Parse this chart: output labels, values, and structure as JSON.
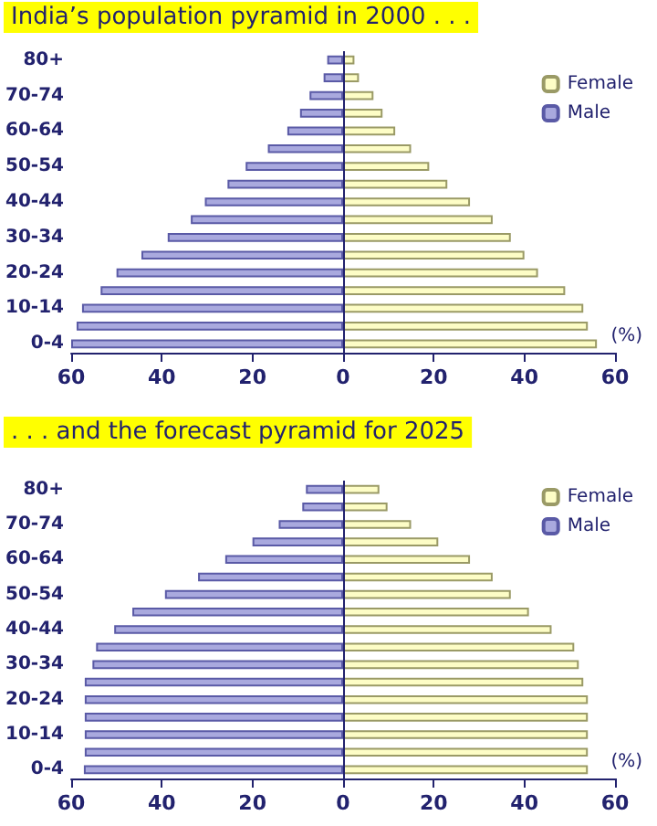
{
  "chart_data": [
    {
      "type": "bar",
      "orientation": "horizontal",
      "stacked": true,
      "title": "India’s population pyramid in 2000 . . .",
      "annotations": [
        "(%)"
      ],
      "categories": [
        "80+",
        null,
        "70-74",
        null,
        "60-64",
        null,
        "50-54",
        null,
        "40-44",
        null,
        "30-34",
        null,
        "20-24",
        null,
        "10-14",
        null,
        "0-4"
      ],
      "series": [
        {
          "name": "Female",
          "color": "#fdfdc6",
          "values": [
            2.5,
            3.5,
            6.7,
            8.7,
            11.5,
            15,
            19,
            23,
            28,
            33,
            37,
            40,
            43,
            49,
            53,
            54,
            56
          ]
        },
        {
          "name": "Male",
          "color": "#a9a9de",
          "values": [
            -3.5,
            -4.3,
            -7.4,
            -9.5,
            -12.3,
            -16.6,
            -21.5,
            -25.5,
            -30.5,
            -33.6,
            -38.7,
            -44.5,
            -50,
            -53.5,
            -57.6,
            -58.8,
            -60
          ]
        }
      ],
      "xlim": [
        -60,
        60
      ],
      "xticks": [
        {
          "value": -60,
          "label": "60"
        },
        {
          "value": -40,
          "label": "40"
        },
        {
          "value": -20,
          "label": "20"
        },
        0,
        20,
        40,
        60
      ],
      "ref_lines": [
        {
          "axis": "x",
          "value": 0,
          "color": "#22226e"
        }
      ],
      "grid": false,
      "legend": "top right"
    },
    {
      "type": "bar",
      "orientation": "horizontal",
      "stacked": true,
      "title": ". . . and the forecast pyramid for 2025",
      "annotations": [
        "(%)"
      ],
      "categories": [
        "80+",
        null,
        "70-74",
        null,
        "60-64",
        null,
        "50-54",
        null,
        "40-44",
        null,
        "30-34",
        null,
        "20-24",
        null,
        "10-14",
        null,
        "0-4"
      ],
      "series": [
        {
          "name": "Female",
          "color": "#fdfdc6",
          "values": [
            8,
            9.8,
            15,
            21,
            28,
            33,
            37,
            41,
            46,
            51,
            52,
            53,
            54,
            54,
            54,
            54,
            54
          ]
        },
        {
          "name": "Male",
          "color": "#a9a9de",
          "values": [
            -8.2,
            -9,
            -14.2,
            -20,
            -26,
            -32,
            -39.3,
            -46.5,
            -50.5,
            -54.5,
            -55.3,
            -57,
            -57,
            -57,
            -57,
            -57,
            -57.2
          ]
        }
      ],
      "xlim": [
        -60,
        60
      ],
      "xticks": [
        {
          "value": -60,
          "label": "60"
        },
        {
          "value": -40,
          "label": "40"
        },
        {
          "value": -20,
          "label": "20"
        },
        0,
        20,
        40,
        60
      ],
      "ref_lines": [
        {
          "axis": "x",
          "value": 0,
          "color": "#22226e"
        }
      ],
      "grid": false,
      "legend": "top right"
    }
  ]
}
